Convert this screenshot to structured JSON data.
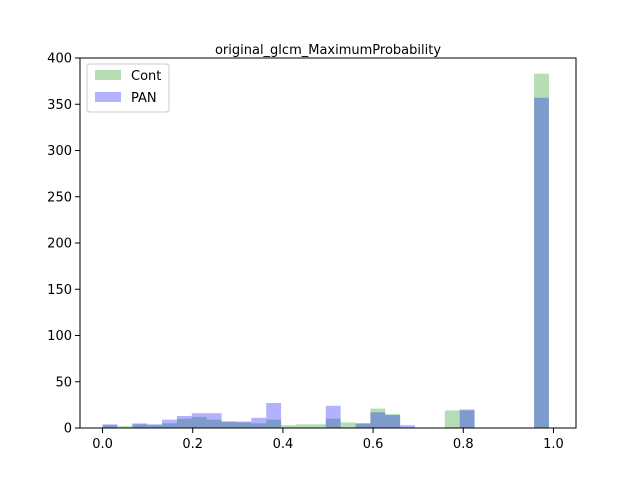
{
  "chart_data": {
    "type": "bar",
    "subtype": "overlapping-histogram",
    "title": "original_glcm_MaximumProbability",
    "xlabel": "",
    "ylabel": "",
    "xlim": [
      -0.05,
      1.05
    ],
    "ylim": [
      0,
      400
    ],
    "xticks": [
      0.0,
      0.2,
      0.4,
      0.6,
      0.8,
      1.0
    ],
    "xtick_labels": [
      "0.0",
      "0.2",
      "0.4",
      "0.6",
      "0.8",
      "1.0"
    ],
    "yticks": [
      0,
      50,
      100,
      150,
      200,
      250,
      300,
      350,
      400
    ],
    "ytick_labels": [
      "0",
      "50",
      "100",
      "150",
      "200",
      "250",
      "300",
      "350",
      "400"
    ],
    "grid": false,
    "legend_position": "top-left",
    "bin_width": 0.033,
    "series": [
      {
        "name": "Cont",
        "color": "#2ca02c",
        "opacity": 0.35,
        "bins": [
          {
            "x": 0.0,
            "count": 3
          },
          {
            "x": 0.033,
            "count": 2
          },
          {
            "x": 0.066,
            "count": 4
          },
          {
            "x": 0.099,
            "count": 3
          },
          {
            "x": 0.132,
            "count": 5
          },
          {
            "x": 0.165,
            "count": 10
          },
          {
            "x": 0.198,
            "count": 12
          },
          {
            "x": 0.231,
            "count": 9
          },
          {
            "x": 0.264,
            "count": 7
          },
          {
            "x": 0.297,
            "count": 6
          },
          {
            "x": 0.33,
            "count": 5
          },
          {
            "x": 0.363,
            "count": 9
          },
          {
            "x": 0.396,
            "count": 3
          },
          {
            "x": 0.429,
            "count": 4
          },
          {
            "x": 0.462,
            "count": 4
          },
          {
            "x": 0.495,
            "count": 10
          },
          {
            "x": 0.528,
            "count": 6
          },
          {
            "x": 0.561,
            "count": 5
          },
          {
            "x": 0.594,
            "count": 21
          },
          {
            "x": 0.627,
            "count": 15
          },
          {
            "x": 0.759,
            "count": 19
          },
          {
            "x": 0.792,
            "count": 19
          },
          {
            "x": 0.957,
            "count": 383
          }
        ]
      },
      {
        "name": "PAN",
        "color": "#0000ff",
        "opacity": 0.3,
        "bins": [
          {
            "x": 0.0,
            "count": 4
          },
          {
            "x": 0.066,
            "count": 5
          },
          {
            "x": 0.099,
            "count": 4
          },
          {
            "x": 0.132,
            "count": 9
          },
          {
            "x": 0.165,
            "count": 13
          },
          {
            "x": 0.198,
            "count": 16
          },
          {
            "x": 0.231,
            "count": 16
          },
          {
            "x": 0.264,
            "count": 7
          },
          {
            "x": 0.297,
            "count": 7
          },
          {
            "x": 0.33,
            "count": 11
          },
          {
            "x": 0.363,
            "count": 27
          },
          {
            "x": 0.495,
            "count": 24
          },
          {
            "x": 0.561,
            "count": 5
          },
          {
            "x": 0.594,
            "count": 17
          },
          {
            "x": 0.627,
            "count": 14
          },
          {
            "x": 0.66,
            "count": 3
          },
          {
            "x": 0.792,
            "count": 20
          },
          {
            "x": 0.957,
            "count": 357
          }
        ]
      }
    ]
  }
}
